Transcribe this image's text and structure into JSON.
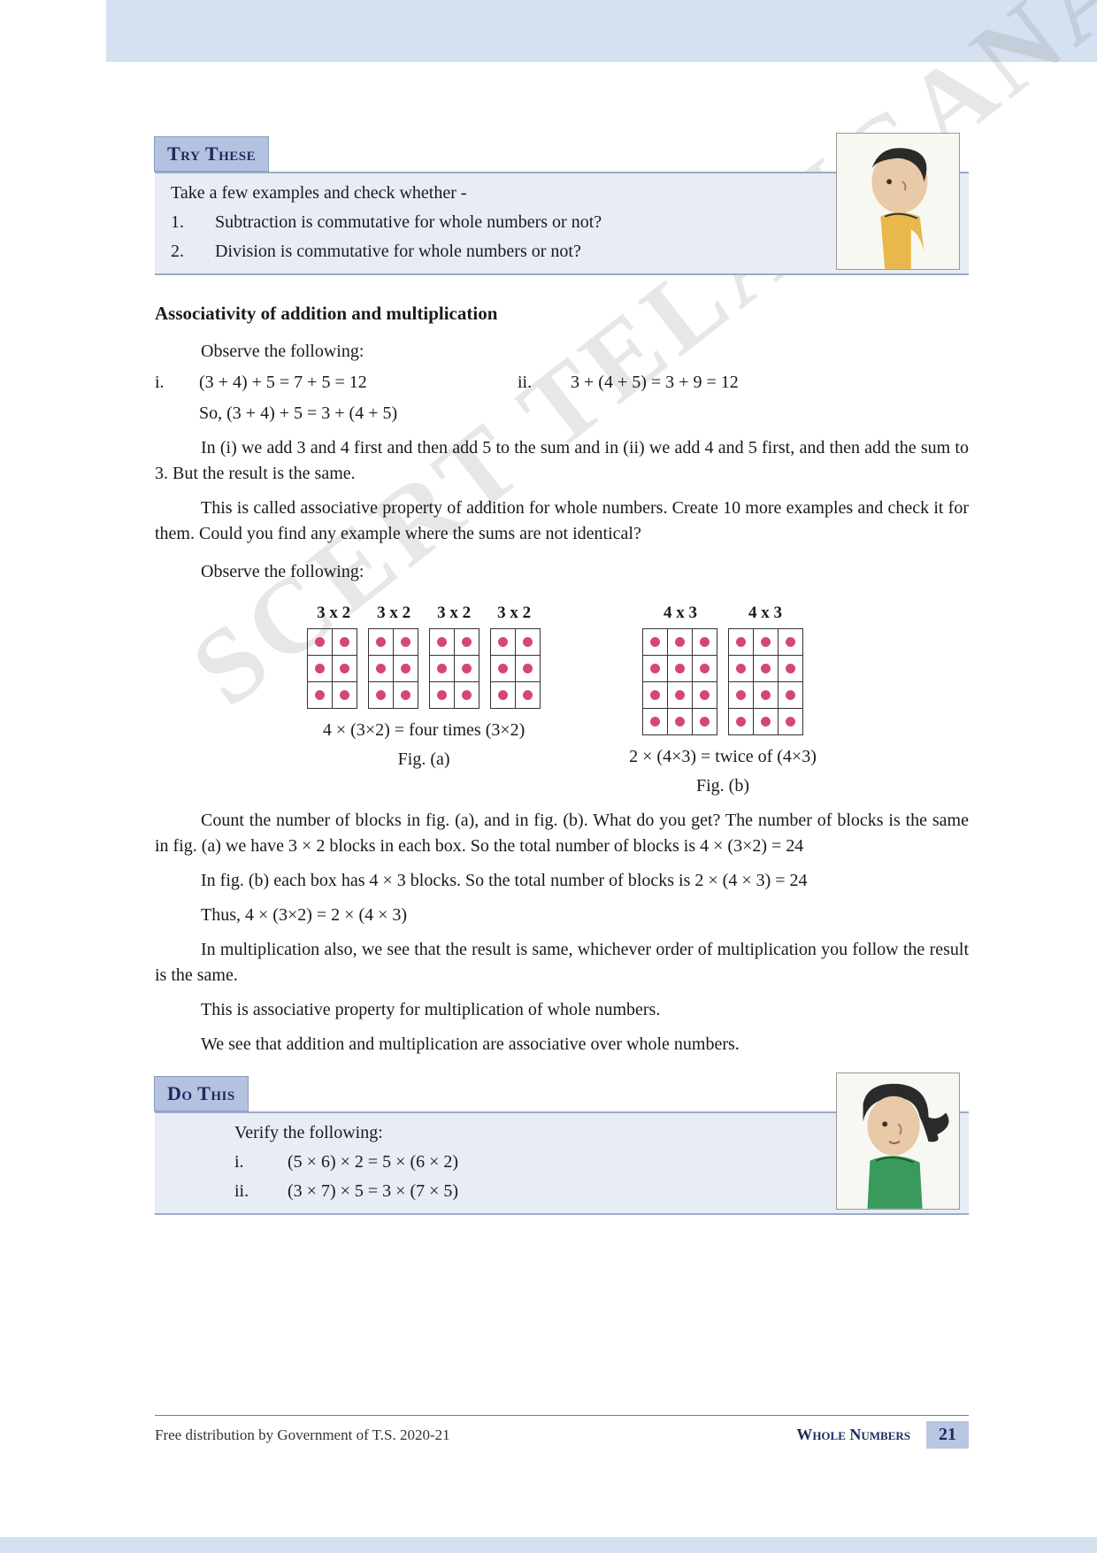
{
  "watermark_text": "SCERT TELANGANA",
  "try_these": {
    "header": "Try These",
    "intro": "Take a few examples and check whether -",
    "items": [
      {
        "num": "1.",
        "text": "Subtraction is commutative for whole numbers or not?"
      },
      {
        "num": "2.",
        "text": "Division is commutative for whole numbers or not?"
      }
    ],
    "image_alt": "boy portrait"
  },
  "section": {
    "title": "Associativity of addition and multiplication",
    "observe1": "Observe the following:",
    "eq_i_label": "i.",
    "eq_i": "(3 + 4) + 5 = 7 + 5 = 12",
    "eq_ii_label": "ii.",
    "eq_ii": "3 + (4 + 5) = 3 + 9 = 12",
    "eq_so": "So, (3 + 4) + 5 = 3 + (4 + 5)",
    "para1": "In (i) we add 3 and 4 first and then add 5 to the sum and in (ii) we add 4 and 5 first, and then add the sum to 3. But the result is the same.",
    "para2": "This is called associative property of addition for whole numbers. Create 10 more examples and check it for them. Could you find any example where the sums are not identical?",
    "observe2": "Observe the following:",
    "fig_a": {
      "grid_label": "3 x 2",
      "grid_count": 4,
      "rows": 3,
      "cols": 2,
      "caption": "4 × (3×2)  = four times (3×2)",
      "label": "Fig. (a)"
    },
    "fig_b": {
      "grid_label": "4 x 3",
      "grid_count": 2,
      "rows": 4,
      "cols": 3,
      "caption": "2 × (4×3) = twice of (4×3)",
      "label": "Fig. (b)"
    },
    "dot_color": "#d4467a",
    "para3": "Count the number of blocks in fig. (a), and in fig. (b). What do you get? The number of blocks is the same in fig. (a) we have 3 × 2 blocks in each box. So the total number of blocks is 4 × (3×2) = 24",
    "para4": "In fig. (b) each box has 4 × 3 blocks. So the total number of blocks is 2 × (4 × 3) = 24",
    "para5": "Thus, 4 × (3×2) = 2 × (4 × 3)",
    "para6": "In multiplication also, we see that the result is same, whichever order of multiplication you follow the result is the same.",
    "para7": "This is associative property for multiplication of whole numbers.",
    "para8": "We see that addition and multiplication are associative over whole numbers."
  },
  "do_this": {
    "header": "Do This",
    "intro": "Verify the following:",
    "items": [
      {
        "num": "i.",
        "text": "(5 × 6) × 2 = 5 × (6 × 2)"
      },
      {
        "num": "ii.",
        "text": "(3 × 7) × 5 = 3 × (7 × 5)"
      }
    ],
    "image_alt": "girl portrait"
  },
  "footer": {
    "distribution": "Free distribution by Government of T.S. 2020-21",
    "chapter": "Whole Numbers",
    "page": "21"
  },
  "colors": {
    "band": "#d5e0f0",
    "callout_header_bg": "#b3c2e0",
    "callout_body_bg": "#e8ecf5",
    "accent": "#1a2a5e"
  }
}
